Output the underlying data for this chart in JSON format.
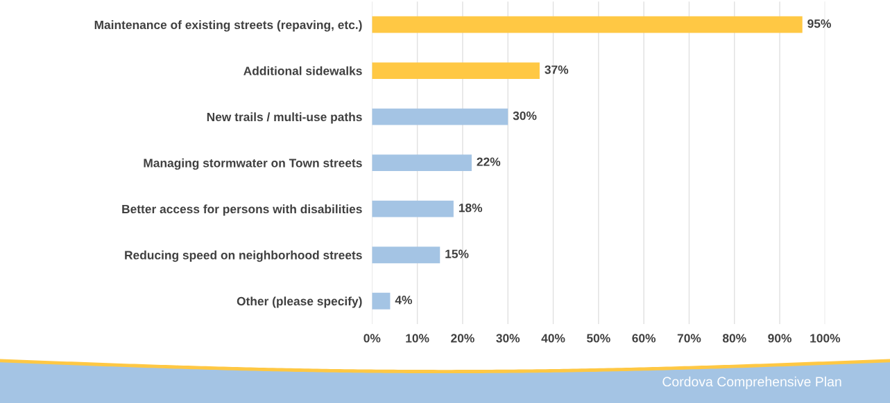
{
  "chart_data": {
    "type": "bar",
    "orientation": "horizontal",
    "categories": [
      "Maintenance of existing streets (repaving, etc.)",
      "Additional sidewalks",
      "New trails / multi-use paths",
      "Managing stormwater on Town streets",
      "Better access for persons with disabilities",
      "Reducing speed on neighborhood streets",
      "Other (please specify)"
    ],
    "values": [
      95,
      37,
      30,
      22,
      18,
      15,
      4
    ],
    "colors": [
      "#ffc844",
      "#ffc844",
      "#a4c4e4",
      "#a4c4e4",
      "#a4c4e4",
      "#a4c4e4",
      "#a4c4e4"
    ],
    "value_labels": [
      "95%",
      "37%",
      "30%",
      "22%",
      "18%",
      "15%",
      "4%"
    ],
    "xlim": [
      0,
      100
    ],
    "xticks": [
      {
        "value": 0,
        "label": "0%"
      },
      {
        "value": 10,
        "label": "10%"
      },
      {
        "value": 20,
        "label": "20%"
      },
      {
        "value": 30,
        "label": "30%"
      },
      {
        "value": 40,
        "label": "40%"
      },
      {
        "value": 50,
        "label": "50%"
      },
      {
        "value": 60,
        "label": "60%"
      },
      {
        "value": 70,
        "label": "70%"
      },
      {
        "value": 80,
        "label": "80%"
      },
      {
        "value": 90,
        "label": "90%"
      },
      {
        "value": 100,
        "label": "100%"
      }
    ],
    "grid": "x",
    "annotations": [
      "Cordova Comprehensive Plan"
    ]
  }
}
